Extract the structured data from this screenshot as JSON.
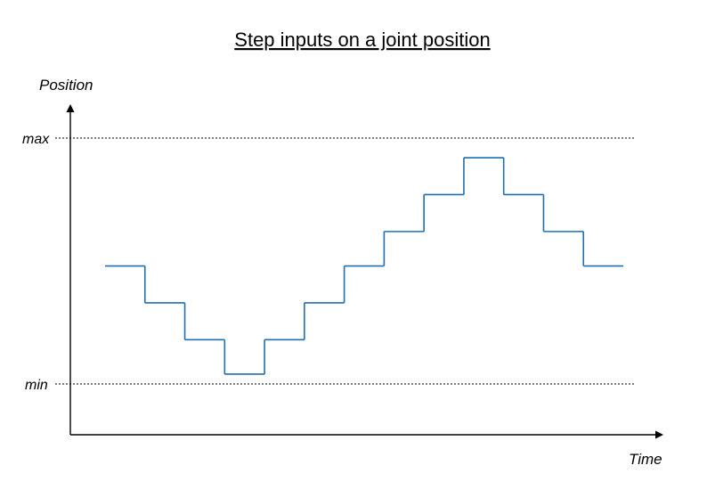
{
  "diagram": {
    "title": "Step inputs on a joint position",
    "y_axis_label": "Position",
    "x_axis_label": "Time",
    "max_label": "max",
    "min_label": "min"
  },
  "colors": {
    "signal": "#1f6fb2",
    "axes": "#000000",
    "reference_lines": "#000000"
  },
  "chart_data": {
    "type": "line",
    "step": true,
    "title": "Step inputs on a joint position",
    "xlabel": "Time",
    "ylabel": "Position",
    "reference_lines": [
      {
        "label": "max",
        "value": 1.0,
        "style": "dotted"
      },
      {
        "label": "min",
        "value": 0.0,
        "style": "dotted"
      }
    ],
    "ylim": [
      -0.2,
      1.25
    ],
    "x_start": 0,
    "x_end": 13,
    "series": [
      {
        "values": [
          0.48,
          0.33,
          0.18,
          0.04,
          0.18,
          0.33,
          0.48,
          0.62,
          0.77,
          0.92,
          0.77,
          0.62,
          0.48
        ]
      }
    ]
  }
}
